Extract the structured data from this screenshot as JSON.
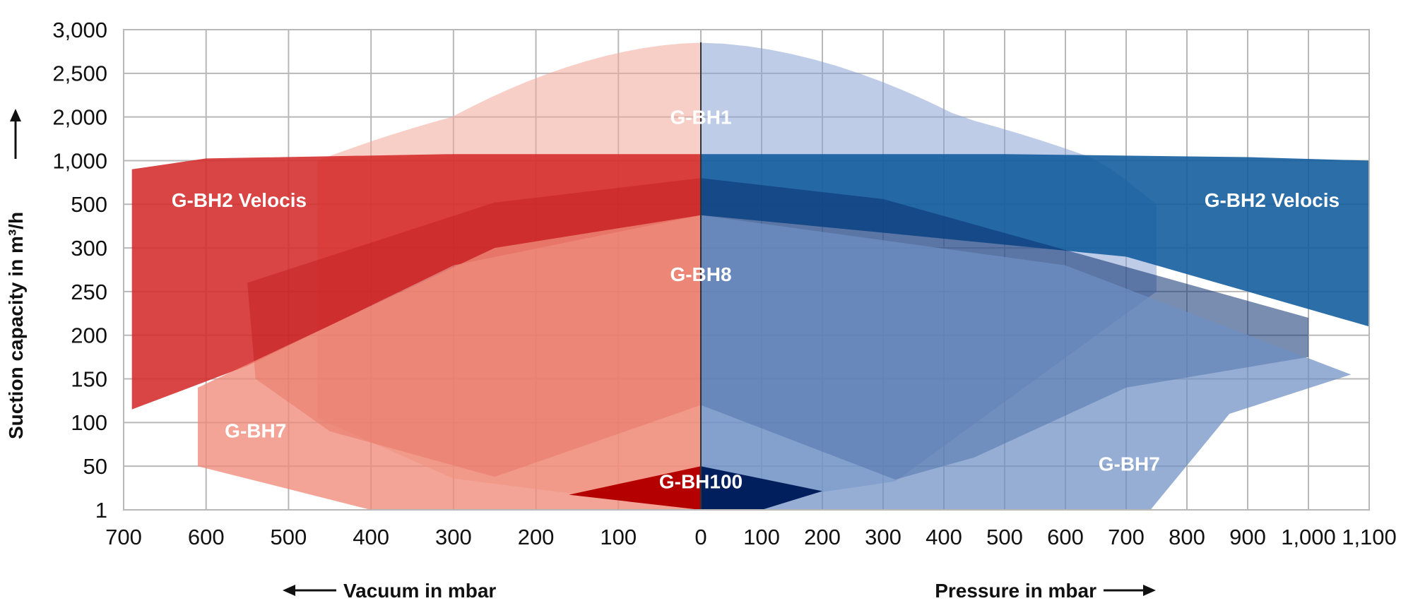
{
  "chart_data": {
    "type": "area",
    "title": "",
    "ylabel": "Suction capacity in m³/h",
    "xlabel_left": "Vacuum in mbar",
    "xlabel_right": "Pressure in mbar",
    "x_ticks_left": [
      "700",
      "600",
      "500",
      "400",
      "300",
      "200",
      "100"
    ],
    "x_ticks_right": [
      "0",
      "100",
      "200",
      "300",
      "400",
      "500",
      "600",
      "700",
      "800",
      "900",
      "1,000",
      "1,100"
    ],
    "y_ticks": [
      "1",
      "50",
      "100",
      "150",
      "200",
      "250",
      "300",
      "500",
      "1,000",
      "2,000",
      "2,500",
      "3,000"
    ],
    "grid": true,
    "colors": {
      "vacuum": "#d42a2a",
      "pressure": "#0f5a9c"
    },
    "series": [
      {
        "name": "G-BH1",
        "vacuum": {
          "max_vacuum_mbar": 465,
          "capacity_at_0": 2850,
          "capacity_at_max": 1000,
          "min_capacity": 1
        },
        "pressure": {
          "max_pressure_mbar": 750,
          "capacity_at_0": 2850,
          "capacity_at_max": 500,
          "min_capacity": 1
        }
      },
      {
        "name": "G-BH2 Velocis",
        "vacuum": {
          "max_vacuum_mbar": 690,
          "capacity_at_0": 1150,
          "capacity_at_max": 900,
          "min_capacity_at_max": 115
        },
        "pressure": {
          "max_pressure_mbar": 1100,
          "capacity_at_0": 1150,
          "capacity_at_max": 1000,
          "min_capacity_at_max": 210
        }
      },
      {
        "name": "G-BH8",
        "vacuum": {
          "max_vacuum_mbar": 550,
          "capacity_at_0": 800,
          "min_capacity": 35
        },
        "pressure": {
          "max_pressure_mbar": 1000,
          "capacity_at_0": 800,
          "capacity_at_max": 220,
          "min_capacity": 35
        }
      },
      {
        "name": "G-BH7",
        "vacuum": {
          "max_vacuum_mbar": 610,
          "capacity_at_0": 450,
          "capacity_at_max": 140,
          "min_capacity": 50
        },
        "pressure": {
          "max_pressure_mbar": 1070,
          "capacity_at_0": 450,
          "capacity_at_max": 155,
          "min_capacity": 1
        }
      },
      {
        "name": "G-BH100",
        "vacuum": {
          "max_vacuum_mbar": 160,
          "capacity_at_0": 50
        },
        "pressure": {
          "max_pressure_mbar": 200,
          "capacity_at_0": 50
        }
      }
    ],
    "region_labels": [
      {
        "text": "G-BH1",
        "x": 0,
        "y": 2000
      },
      {
        "text": "G-BH2 Velocis",
        "x": -560,
        "y": 550
      },
      {
        "text": "G-BH2 Velocis",
        "x": 940,
        "y": 550
      },
      {
        "text": "G-BH8",
        "x": 0,
        "y": 270
      },
      {
        "text": "G-BH7",
        "x": -540,
        "y": 91
      },
      {
        "text": "G-BH7",
        "x": 705,
        "y": 53
      },
      {
        "text": "G-BH100",
        "x": 0,
        "y": 33
      }
    ]
  }
}
